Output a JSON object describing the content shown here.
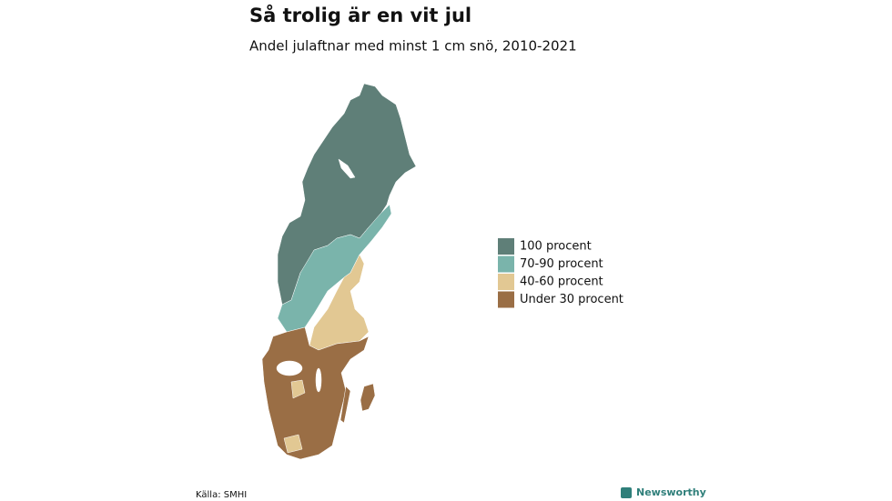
{
  "header": {
    "title": "Så trolig är en vit jul",
    "subtitle": "Andel julaftnar med minst 1 cm snö, 2010-2021"
  },
  "legend": {
    "items": [
      {
        "label": "100 procent",
        "color": "#5f7f78"
      },
      {
        "label": "70-90 procent",
        "color": "#7ab4ab"
      },
      {
        "label": "40-60 procent",
        "color": "#e2c893"
      },
      {
        "label": "Under 30 procent",
        "color": "#9a6e45"
      }
    ]
  },
  "footer": {
    "source": "Källa: SMHI",
    "brand": "Newsworthy"
  }
}
